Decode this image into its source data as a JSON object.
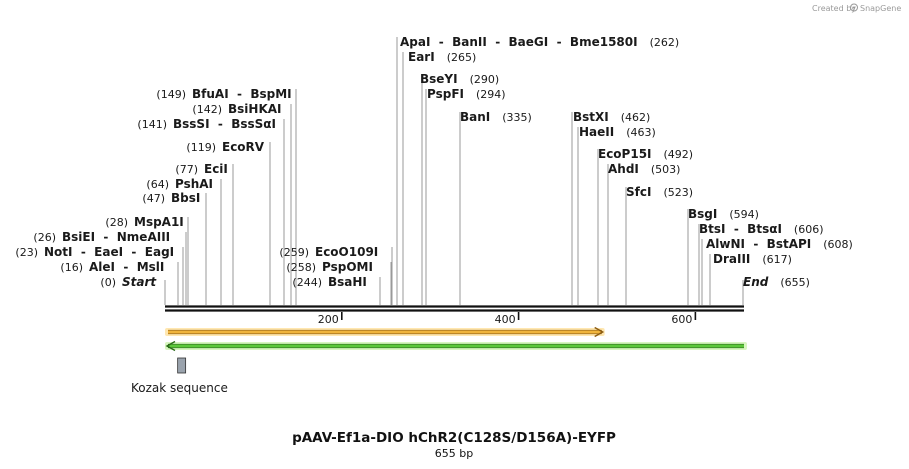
{
  "credit": {
    "text": "Created by",
    "brand": "SnapGene"
  },
  "map": {
    "title": "pAAV-Ef1a-DIO hChR2(C128S/D156A)-EYFP",
    "length_label": "655 bp",
    "length": 655,
    "ruler_ticks": [
      {
        "value": 200,
        "label": "200"
      },
      {
        "value": 400,
        "label": "400"
      },
      {
        "value": 600,
        "label": "600"
      }
    ]
  },
  "sites": [
    {
      "pos": 0,
      "pos_label": "(0)",
      "name": "Start",
      "italic": true
    },
    {
      "pos": 16,
      "pos_label": "(16)",
      "name": "AleI  -  MslI"
    },
    {
      "pos": 23,
      "pos_label": "(23)",
      "name": "NotI  -  EaeI  -  EagI"
    },
    {
      "pos": 26,
      "pos_label": "(26)",
      "name": "BsiEI  -  NmeAIII"
    },
    {
      "pos": 28,
      "pos_label": "(28)",
      "name": "MspA1I"
    },
    {
      "pos": 47,
      "pos_label": "(47)",
      "name": "BbsI"
    },
    {
      "pos": 64,
      "pos_label": "(64)",
      "name": "PshAI"
    },
    {
      "pos": 77,
      "pos_label": "(77)",
      "name": "EciI"
    },
    {
      "pos": 119,
      "pos_label": "(119)",
      "name": "EcoRV"
    },
    {
      "pos": 141,
      "pos_label": "(141)",
      "name": "BssSI  -  BssSαI"
    },
    {
      "pos": 142,
      "pos_label": "(142)",
      "name": "BsiHKAI"
    },
    {
      "pos": 149,
      "pos_label": "(149)",
      "name": "BfuAI  -  BspMI"
    },
    {
      "pos": 244,
      "pos_label": "(244)",
      "name": "BsaHI"
    },
    {
      "pos": 258,
      "pos_label": "(258)",
      "name": "PspOMI"
    },
    {
      "pos": 259,
      "pos_label": "(259)",
      "name": "EcoO109I"
    },
    {
      "pos": 262,
      "pos_label": "(262)",
      "name": "ApaI  -  BanII  -  BaeGI  -  Bme1580I"
    },
    {
      "pos": 265,
      "pos_label": "(265)",
      "name": "EarI"
    },
    {
      "pos": 290,
      "pos_label": "(290)",
      "name": "BseYI"
    },
    {
      "pos": 294,
      "pos_label": "(294)",
      "name": "PspFI"
    },
    {
      "pos": 335,
      "pos_label": "(335)",
      "name": "BanI"
    },
    {
      "pos": 462,
      "pos_label": "(462)",
      "name": "BstXI"
    },
    {
      "pos": 463,
      "pos_label": "(463)",
      "name": "HaeII"
    },
    {
      "pos": 492,
      "pos_label": "(492)",
      "name": "EcoP15I"
    },
    {
      "pos": 503,
      "pos_label": "(503)",
      "name": "AhdI"
    },
    {
      "pos": 523,
      "pos_label": "(523)",
      "name": "SfcI"
    },
    {
      "pos": 594,
      "pos_label": "(594)",
      "name": "BsgI"
    },
    {
      "pos": 606,
      "pos_label": "(606)",
      "name": "BtsI  -  BtsαI"
    },
    {
      "pos": 608,
      "pos_label": "(608)",
      "name": "AlwNI  -  BstAPI"
    },
    {
      "pos": 617,
      "pos_label": "(617)",
      "name": "DraIII"
    },
    {
      "pos": 655,
      "pos_label": "(655)",
      "name": "End",
      "italic": true
    }
  ],
  "features": [
    {
      "name": "orange-arrow",
      "start": 0,
      "end": 494,
      "direction": "forward",
      "fill": "#f0b43c",
      "edge": "#8a5a10",
      "glow": "#ffe7b0"
    },
    {
      "name": "green-arrow",
      "start": 0,
      "end": 655,
      "direction": "reverse",
      "fill": "#5cc83a",
      "edge": "#2a6a18",
      "glow": "#d8f6c0"
    }
  ],
  "kozak": {
    "label": "Kozak sequence",
    "pos": 16,
    "color": "#9aa3ad"
  }
}
